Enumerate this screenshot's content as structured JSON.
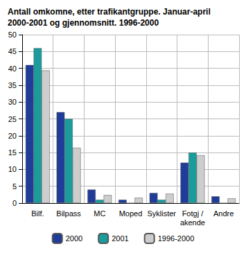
{
  "chart_data": {
    "type": "bar",
    "title": "Antall omkomne, etter trafikantgruppe. Januar-april\n2000-2001 og gjennomsnitt. 1996-2000",
    "categories": [
      "Bilf.",
      "Bilpass",
      "MC",
      "Moped",
      "Syklister",
      "Fotgj /\nakende",
      "Andre"
    ],
    "series": [
      {
        "name": "2000",
        "color": "#1f3c99",
        "values": [
          41,
          27,
          4,
          1,
          3,
          12,
          2
        ]
      },
      {
        "name": "2001",
        "color": "#1a9c9c",
        "values": [
          46,
          25,
          1,
          0,
          1,
          15,
          0
        ]
      },
      {
        "name": "1996-2000",
        "color": "#cdcdcd",
        "values": [
          39.4,
          16.4,
          2.4,
          1.6,
          2.8,
          14.2,
          1.4
        ]
      }
    ],
    "ylim": [
      0,
      50
    ],
    "yticks": [
      0,
      5,
      10,
      15,
      20,
      25,
      30,
      35,
      40,
      45,
      50
    ],
    "grid": true,
    "legend": "bottom"
  }
}
